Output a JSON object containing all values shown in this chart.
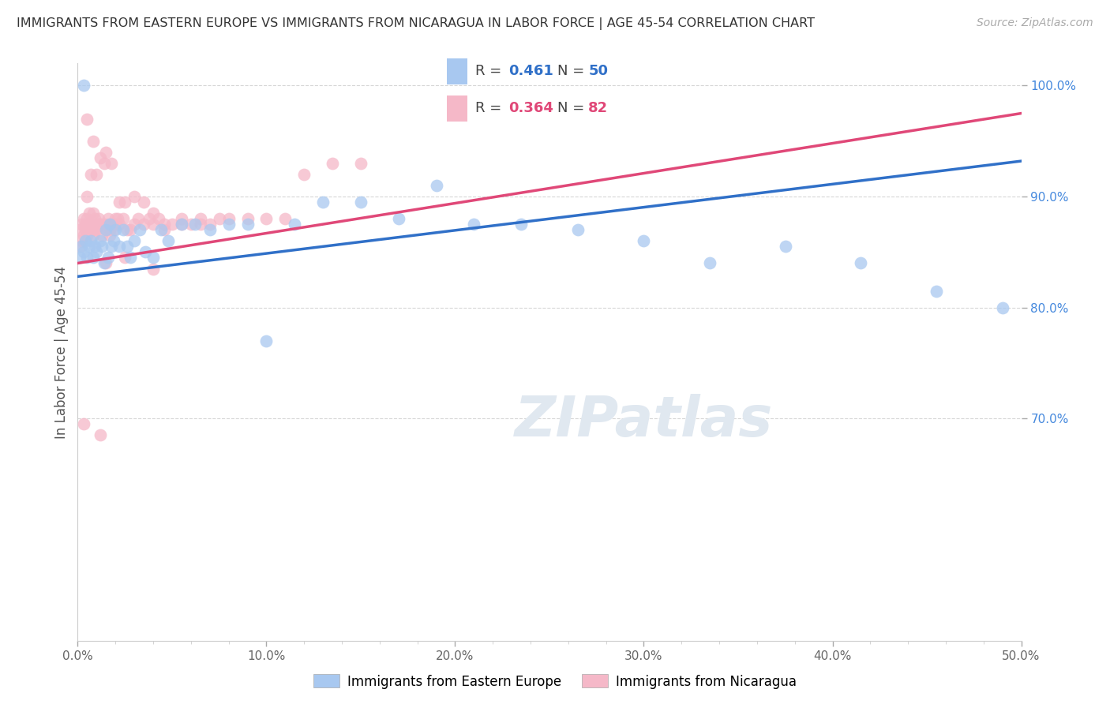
{
  "title": "IMMIGRANTS FROM EASTERN EUROPE VS IMMIGRANTS FROM NICARAGUA IN LABOR FORCE | AGE 45-54 CORRELATION CHART",
  "source": "Source: ZipAtlas.com",
  "ylabel": "In Labor Force | Age 45-54",
  "xlim": [
    0.0,
    0.5
  ],
  "ylim": [
    0.5,
    1.02
  ],
  "xticks": [
    0.0,
    0.1,
    0.2,
    0.3,
    0.4,
    0.5
  ],
  "xtick_labels": [
    "0.0%",
    "10.0%",
    "20.0%",
    "30.0%",
    "40.0%",
    "50.0%"
  ],
  "yticks": [
    0.7,
    0.8,
    0.9,
    1.0
  ],
  "ytick_labels": [
    "70.0%",
    "80.0%",
    "90.0%",
    "100.0%"
  ],
  "blue_scatter_color": "#a8c8f0",
  "pink_scatter_color": "#f5b8c8",
  "blue_line_color": "#3070c8",
  "pink_line_color": "#e04878",
  "R_blue": 0.461,
  "N_blue": 50,
  "R_pink": 0.364,
  "N_pink": 82,
  "legend1_label": "Immigrants from Eastern Europe",
  "legend2_label": "Immigrants from Nicaragua",
  "watermark": "ZIPatlas",
  "blue_line_x0": 0.0,
  "blue_line_y0": 0.828,
  "blue_line_x1": 0.5,
  "blue_line_y1": 0.932,
  "pink_line_x0": 0.0,
  "pink_line_y0": 0.84,
  "pink_line_x1": 0.5,
  "pink_line_y1": 0.975,
  "blue_points_x": [
    0.001,
    0.002,
    0.003,
    0.004,
    0.005,
    0.006,
    0.007,
    0.008,
    0.009,
    0.01,
    0.012,
    0.013,
    0.014,
    0.015,
    0.016,
    0.017,
    0.018,
    0.019,
    0.02,
    0.022,
    0.024,
    0.026,
    0.028,
    0.03,
    0.033,
    0.036,
    0.04,
    0.044,
    0.048,
    0.055,
    0.062,
    0.07,
    0.08,
    0.09,
    0.1,
    0.115,
    0.13,
    0.15,
    0.17,
    0.19,
    0.21,
    0.235,
    0.265,
    0.3,
    0.335,
    0.375,
    0.415,
    0.455,
    0.49,
    0.003
  ],
  "blue_points_y": [
    0.845,
    0.855,
    0.85,
    0.86,
    0.845,
    0.855,
    0.86,
    0.845,
    0.855,
    0.85,
    0.86,
    0.855,
    0.84,
    0.87,
    0.845,
    0.875,
    0.855,
    0.86,
    0.87,
    0.855,
    0.87,
    0.855,
    0.845,
    0.86,
    0.87,
    0.85,
    0.845,
    0.87,
    0.86,
    0.875,
    0.875,
    0.87,
    0.875,
    0.875,
    0.77,
    0.875,
    0.895,
    0.895,
    0.88,
    0.91,
    0.875,
    0.875,
    0.87,
    0.86,
    0.84,
    0.855,
    0.84,
    0.815,
    0.8,
    1.0
  ],
  "pink_points_x": [
    0.001,
    0.001,
    0.002,
    0.002,
    0.003,
    0.003,
    0.004,
    0.004,
    0.005,
    0.005,
    0.006,
    0.006,
    0.007,
    0.007,
    0.008,
    0.008,
    0.009,
    0.009,
    0.01,
    0.01,
    0.011,
    0.011,
    0.012,
    0.013,
    0.014,
    0.015,
    0.016,
    0.016,
    0.017,
    0.018,
    0.019,
    0.02,
    0.021,
    0.022,
    0.024,
    0.026,
    0.028,
    0.03,
    0.032,
    0.035,
    0.038,
    0.04,
    0.043,
    0.046,
    0.05,
    0.055,
    0.06,
    0.065,
    0.07,
    0.075,
    0.08,
    0.09,
    0.1,
    0.11,
    0.12,
    0.135,
    0.15,
    0.017,
    0.02,
    0.022,
    0.025,
    0.03,
    0.035,
    0.04,
    0.046,
    0.055,
    0.065,
    0.015,
    0.025,
    0.04,
    0.005,
    0.008,
    0.012,
    0.015,
    0.018,
    0.007,
    0.01,
    0.014,
    0.005,
    0.008,
    0.003,
    0.012
  ],
  "pink_points_y": [
    0.855,
    0.87,
    0.86,
    0.875,
    0.865,
    0.88,
    0.87,
    0.875,
    0.865,
    0.88,
    0.875,
    0.885,
    0.87,
    0.875,
    0.865,
    0.885,
    0.87,
    0.88,
    0.875,
    0.87,
    0.875,
    0.88,
    0.875,
    0.865,
    0.875,
    0.87,
    0.875,
    0.88,
    0.87,
    0.875,
    0.87,
    0.875,
    0.88,
    0.875,
    0.88,
    0.87,
    0.87,
    0.875,
    0.88,
    0.875,
    0.88,
    0.875,
    0.88,
    0.87,
    0.875,
    0.875,
    0.875,
    0.875,
    0.875,
    0.88,
    0.88,
    0.88,
    0.88,
    0.88,
    0.92,
    0.93,
    0.93,
    0.865,
    0.88,
    0.895,
    0.895,
    0.9,
    0.895,
    0.885,
    0.875,
    0.88,
    0.88,
    0.84,
    0.845,
    0.835,
    0.9,
    0.87,
    0.935,
    0.94,
    0.93,
    0.92,
    0.92,
    0.93,
    0.97,
    0.95,
    0.695,
    0.685
  ]
}
